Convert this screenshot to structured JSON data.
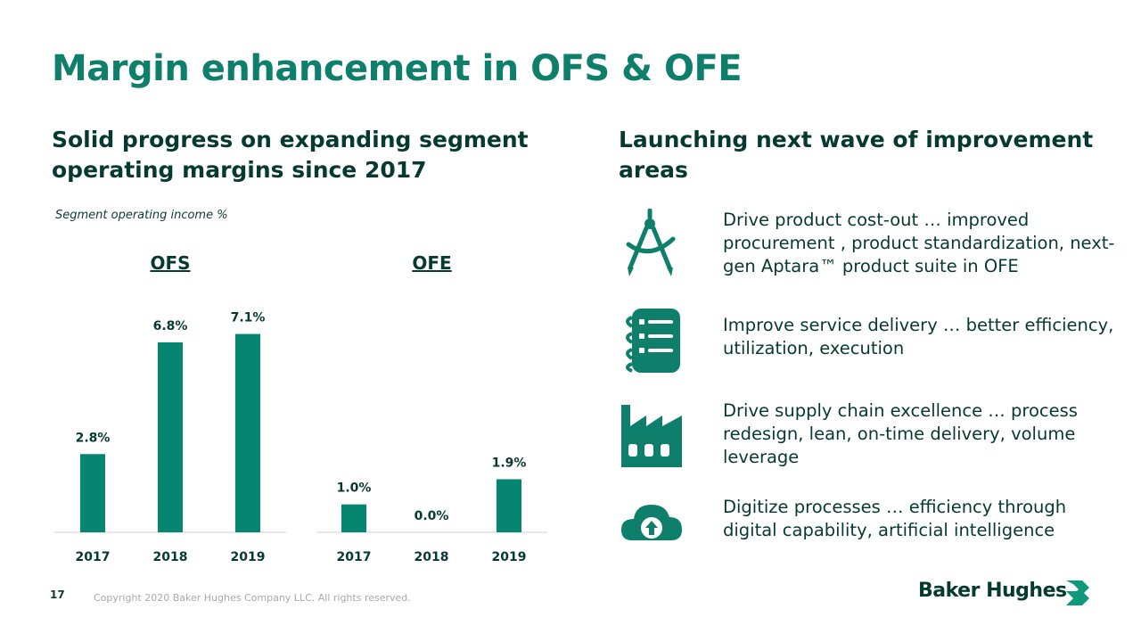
{
  "title": "Margin enhancement in OFS & OFE",
  "left_heading": "Solid progress on expanding segment operating margins since 2017",
  "right_heading": "Launching next wave of improvement areas",
  "chart_subtitle": "Segment operating income %",
  "colors": {
    "accent": "#0d7f6b",
    "bar": "#068571",
    "dark_text": "#063a31",
    "axis": "#cfcfcf"
  },
  "chart_data": [
    {
      "type": "bar",
      "title": "OFS",
      "categories": [
        "2017",
        "2018",
        "2019"
      ],
      "values": [
        2.8,
        6.8,
        7.1
      ],
      "labels": [
        "2.8%",
        "6.8%",
        "7.1%"
      ],
      "ylabel": "Segment operating income %",
      "ylim": [
        0,
        7.5
      ]
    },
    {
      "type": "bar",
      "title": "OFE",
      "categories": [
        "2017",
        "2018",
        "2019"
      ],
      "values": [
        1.0,
        0.0,
        1.9
      ],
      "labels": [
        "1.0%",
        "0.0%",
        "1.9%"
      ],
      "ylabel": "Segment operating income %",
      "ylim": [
        0,
        7.5
      ]
    }
  ],
  "improvements": [
    {
      "icon": "drafting-compass-icon",
      "text": "Drive product cost-out … improved procurement , product standardization, next-gen Aptara™ product suite in OFE"
    },
    {
      "icon": "service-checklist-icon",
      "text": "Improve service delivery … better efficiency, utilization, execution"
    },
    {
      "icon": "factory-icon",
      "text": "Drive supply chain excellence … process redesign, lean, on-time delivery, volume leverage"
    },
    {
      "icon": "cloud-upload-icon",
      "text": "Digitize processes … efficiency through digital capability, artificial intelligence"
    }
  ],
  "footer": {
    "page_number": "17",
    "copyright": "Copyright 2020 Baker Hughes Company LLC. All rights reserved.",
    "brand": "Baker Hughes"
  }
}
